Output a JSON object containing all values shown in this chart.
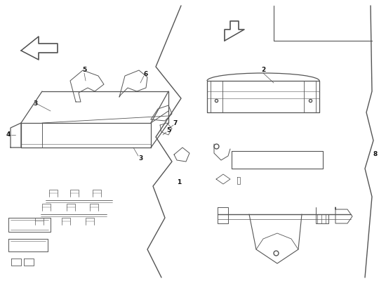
{
  "bg_color": "#ffffff",
  "line_color": "#555555",
  "lw_main": 0.8,
  "lw_thin": 0.5,
  "lw_thick": 1.0,
  "fig_w": 5.5,
  "fig_h": 4.0,
  "dpi": 100,
  "xmax": 550,
  "ymax": 400
}
